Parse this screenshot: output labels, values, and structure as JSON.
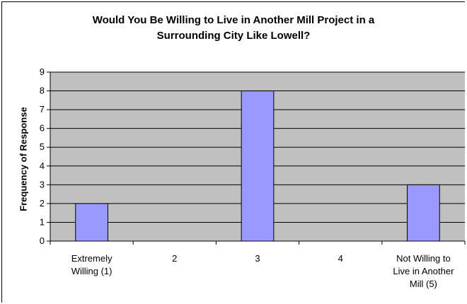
{
  "chart_data": {
    "type": "bar",
    "title_lines": [
      "Would You Be Willing to Live in Another Mill Project in a",
      "Surrounding City Like Lowell?"
    ],
    "ylabel": "Frequency of Response",
    "xlabel": "",
    "categories": [
      [
        "Extremely",
        "Willing (1)"
      ],
      [
        "2"
      ],
      [
        "3"
      ],
      [
        "4"
      ],
      [
        "Not Willing to",
        "Live in Another",
        "Mill (5)"
      ]
    ],
    "values": [
      2,
      0,
      8,
      0,
      3
    ],
    "ylim": [
      0,
      9
    ],
    "yticks": [
      0,
      1,
      2,
      3,
      4,
      5,
      6,
      7,
      8,
      9
    ],
    "grid": true,
    "legend": "none",
    "colors": {
      "bar_fill": "#9999ff",
      "bar_stroke": "#000000",
      "plot_bg": "#c0c0c0",
      "grid": "#000000"
    }
  }
}
